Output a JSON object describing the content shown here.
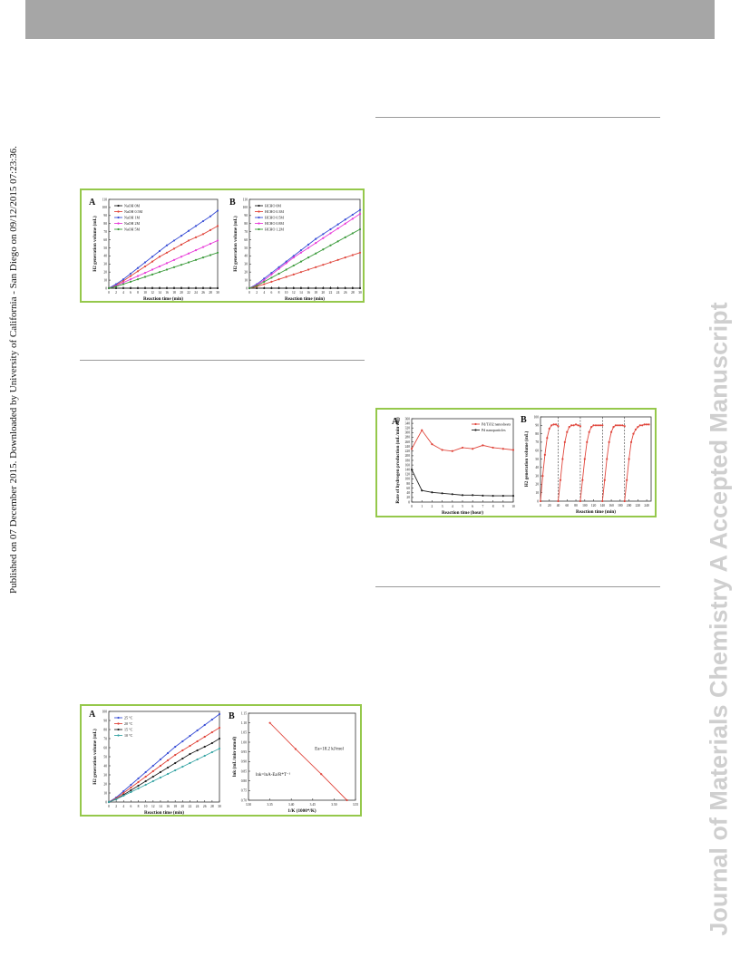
{
  "page": {
    "side_note_left": "Published on 07 December 2015. Downloaded by University of California - San Diego on 09/12/2015 07:23:36.",
    "watermark_right": "Journal of Materials Chemistry A Accepted Manuscript",
    "colors": {
      "figure_border": "#95c84b",
      "header": "#a6a6a6",
      "watermark": "#cfcfcf"
    }
  },
  "figures": [
    {
      "id": "fig1",
      "panels": [
        {
          "letter": "A",
          "chart_data": {
            "type": "line",
            "xlabel": "Reaction time (min)",
            "ylabel": "H2 generation volume (mL)",
            "xlim": [
              0,
              30
            ],
            "ylim": [
              0,
              110
            ],
            "xticks": [
              0,
              2,
              4,
              6,
              8,
              10,
              12,
              14,
              16,
              18,
              20,
              22,
              24,
              26,
              28,
              30
            ],
            "yticks": [
              0,
              10,
              20,
              30,
              40,
              50,
              60,
              70,
              80,
              90,
              100,
              110
            ],
            "legend": "top-left",
            "x": [
              0,
              2,
              4,
              6,
              8,
              10,
              12,
              14,
              16,
              18,
              20,
              22,
              24,
              26,
              28,
              30
            ],
            "series": [
              {
                "name": "NaOH 0M",
                "color": "#222222",
                "values": [
                  0,
                  0,
                  0,
                  0,
                  0,
                  0,
                  0,
                  0,
                  0,
                  0,
                  0,
                  0,
                  0,
                  0,
                  0,
                  0
                ]
              },
              {
                "name": "NaOH 0.5M",
                "color": "#e0463c",
                "values": [
                  0,
                  4,
                  9,
                  15,
                  21,
                  27,
                  33,
                  39,
                  44,
                  49,
                  54,
                  59,
                  63,
                  67,
                  72,
                  77
                ]
              },
              {
                "name": "NaOH 1M",
                "color": "#3a4fd6",
                "values": [
                  0,
                  5,
                  11,
                  18,
                  25,
                  32,
                  39,
                  46,
                  53,
                  59,
                  65,
                  71,
                  77,
                  83,
                  89,
                  96
                ]
              },
              {
                "name": "NaOH 2M",
                "color": "#e83ad8",
                "values": [
                  0,
                  3,
                  7,
                  11,
                  15,
                  19,
                  23,
                  27,
                  31,
                  35,
                  39,
                  43,
                  47,
                  51,
                  55,
                  59
                ]
              },
              {
                "name": "NaOH 5M",
                "color": "#3a9a3a",
                "values": [
                  0,
                  2,
                  5,
                  8,
                  11,
                  14,
                  17,
                  20,
                  23,
                  26,
                  29,
                  32,
                  35,
                  38,
                  41,
                  44
                ]
              }
            ]
          }
        },
        {
          "letter": "B",
          "chart_data": {
            "type": "line",
            "xlabel": "Reaction time (min)",
            "ylabel": "H2 generation volume (mL)",
            "xlim": [
              0,
              30
            ],
            "ylim": [
              0,
              110
            ],
            "xticks": [
              0,
              2,
              4,
              6,
              8,
              10,
              12,
              14,
              16,
              18,
              20,
              22,
              24,
              26,
              28,
              30
            ],
            "yticks": [
              0,
              10,
              20,
              30,
              40,
              50,
              60,
              70,
              80,
              90,
              100,
              110
            ],
            "legend": "top-left",
            "x": [
              0,
              2,
              4,
              6,
              8,
              10,
              12,
              14,
              16,
              18,
              20,
              22,
              24,
              26,
              28,
              30
            ],
            "series": [
              {
                "name": "HCHO 0M",
                "color": "#222222",
                "values": [
                  0,
                  0,
                  0,
                  0,
                  0,
                  0,
                  0,
                  0,
                  0,
                  0,
                  0,
                  0,
                  0,
                  0,
                  0,
                  0
                ]
              },
              {
                "name": "HCHO 0.3M",
                "color": "#e0463c",
                "values": [
                  0,
                  2,
                  5,
                  8,
                  11,
                  14,
                  17,
                  20,
                  23,
                  26,
                  29,
                  32,
                  35,
                  38,
                  41,
                  44
                ]
              },
              {
                "name": "HCHO 0.5M",
                "color": "#3a4fd6",
                "values": [
                  0,
                  5,
                  12,
                  19,
                  26,
                  33,
                  40,
                  47,
                  54,
                  61,
                  67,
                  73,
                  79,
                  85,
                  91,
                  97
                ]
              },
              {
                "name": "HCHO 0.8M",
                "color": "#e83ad8",
                "values": [
                  0,
                  4,
                  10,
                  17,
                  24,
                  31,
                  38,
                  44,
                  50,
                  56,
                  62,
                  68,
                  74,
                  80,
                  86,
                  92
                ]
              },
              {
                "name": "HCHO 1.2M",
                "color": "#3a9a3a",
                "values": [
                  0,
                  3,
                  8,
                  13,
                  18,
                  23,
                  28,
                  33,
                  38,
                  43,
                  48,
                  53,
                  58,
                  63,
                  68,
                  73
                ]
              }
            ]
          }
        }
      ]
    },
    {
      "id": "fig2",
      "panels": [
        {
          "letter": "A",
          "chart_data": {
            "type": "line",
            "xlabel": "Reaction time (hour)",
            "ylabel": "Rate of hydrogen production (mL/min·mg)",
            "xlim": [
              0,
              10
            ],
            "ylim": [
              0,
              360
            ],
            "xticks": [
              0,
              1,
              2,
              3,
              4,
              5,
              6,
              7,
              8,
              9,
              10
            ],
            "yticks": [
              0,
              20,
              40,
              60,
              80,
              100,
              120,
              140,
              160,
              180,
              200,
              220,
              240,
              260,
              280,
              300,
              320,
              340,
              360
            ],
            "legend": "top-right",
            "x": [
              0,
              1,
              2,
              3,
              4,
              5,
              6,
              7,
              8,
              9,
              10
            ],
            "series": [
              {
                "name": "Pd/TiO2 nanosheets",
                "color": "#e0463c",
                "values": [
                  230,
                  310,
                  250,
                  225,
                  220,
                  235,
                  230,
                  245,
                  235,
                  230,
                  225
                ]
              },
              {
                "name": "Pd nanoparticles",
                "color": "#222222",
                "values": [
                  140,
                  50,
                  42,
                  38,
                  34,
                  30,
                  30,
                  28,
                  27,
                  27,
                  27
                ]
              }
            ]
          }
        },
        {
          "letter": "B",
          "chart_data": {
            "type": "line",
            "xlabel": "Reaction time (min)",
            "ylabel": "H2 generation volume (mL)",
            "xlim": [
              0,
              250
            ],
            "ylim": [
              0,
              100
            ],
            "xticks": [
              0,
              20,
              40,
              60,
              80,
              100,
              120,
              140,
              160,
              180,
              200,
              220,
              240
            ],
            "yticks": [
              0,
              10,
              20,
              30,
              40,
              50,
              60,
              70,
              80,
              90,
              100
            ],
            "cycle_dividers": [
              40,
              90,
              140,
              190
            ],
            "cycles": [
              {
                "x": [
                  0,
                  5,
                  10,
                  15,
                  20,
                  25,
                  30,
                  35,
                  40
                ],
                "values": [
                  0,
                  30,
                  55,
                  75,
                  86,
                  90,
                  91,
                  91,
                  89
                ]
              },
              {
                "x": [
                  40,
                  45,
                  50,
                  55,
                  60,
                  65,
                  70,
                  75,
                  80,
                  85,
                  90
                ],
                "values": [
                  0,
                  25,
                  50,
                  70,
                  82,
                  88,
                  90,
                  90,
                  91,
                  90,
                  89
                ]
              },
              {
                "x": [
                  90,
                  95,
                  100,
                  105,
                  110,
                  115,
                  120,
                  125,
                  130,
                  135,
                  140
                ],
                "values": [
                  0,
                  25,
                  50,
                  70,
                  82,
                  88,
                  90,
                  90,
                  90,
                  90,
                  90
                ]
              },
              {
                "x": [
                  140,
                  145,
                  150,
                  155,
                  160,
                  165,
                  170,
                  175,
                  180,
                  185,
                  190
                ],
                "values": [
                  0,
                  25,
                  50,
                  70,
                  82,
                  88,
                  90,
                  90,
                  90,
                  90,
                  89
                ]
              },
              {
                "x": [
                  190,
                  195,
                  200,
                  205,
                  210,
                  215,
                  220,
                  225,
                  230,
                  235,
                  240,
                  245
                ],
                "values": [
                  0,
                  25,
                  50,
                  70,
                  80,
                  85,
                  88,
                  90,
                  90,
                  91,
                  91,
                  91
                ]
              }
            ],
            "color": "#e0463c"
          }
        }
      ]
    },
    {
      "id": "fig3",
      "panels": [
        {
          "letter": "A",
          "chart_data": {
            "type": "line",
            "xlabel": "Reaction time (min)",
            "ylabel": "H2 generation volume (mL)",
            "xlim": [
              0,
              30
            ],
            "ylim": [
              0,
              100
            ],
            "xticks": [
              0,
              2,
              4,
              6,
              8,
              10,
              12,
              14,
              16,
              18,
              20,
              22,
              24,
              26,
              28,
              30
            ],
            "yticks": [
              0,
              10,
              20,
              30,
              40,
              50,
              60,
              70,
              80,
              90,
              100
            ],
            "legend": "top-left",
            "x": [
              0,
              2,
              4,
              6,
              8,
              10,
              12,
              14,
              16,
              18,
              20,
              22,
              24,
              26,
              28,
              30
            ],
            "series": [
              {
                "name": "25 °C",
                "color": "#3a4fd6",
                "values": [
                  0,
                  5,
                  12,
                  19,
                  26,
                  33,
                  40,
                  47,
                  54,
                  61,
                  67,
                  73,
                  79,
                  85,
                  91,
                  97
                ]
              },
              {
                "name": "20 °C",
                "color": "#e0463c",
                "values": [
                  0,
                  4,
                  10,
                  16,
                  22,
                  28,
                  34,
                  40,
                  46,
                  52,
                  57,
                  62,
                  67,
                  72,
                  77,
                  82
                ]
              },
              {
                "name": "15 °C",
                "color": "#222222",
                "values": [
                  0,
                  3,
                  8,
                  13,
                  18,
                  23,
                  28,
                  33,
                  38,
                  43,
                  48,
                  53,
                  57,
                  61,
                  65,
                  70
                ]
              },
              {
                "name": "10 °C",
                "color": "#3aa6a6",
                "values": [
                  0,
                  3,
                  7,
                  11,
                  15,
                  19,
                  23,
                  27,
                  31,
                  35,
                  39,
                  43,
                  47,
                  51,
                  55,
                  59
                ]
              }
            ]
          }
        },
        {
          "letter": "B",
          "chart_data": {
            "type": "line",
            "xlabel": "1/K (1000*/K)",
            "ylabel": "lnk (mL/min·mmol)",
            "xlim": [
              3.3,
              3.55
            ],
            "ylim": [
              0.7,
              1.15
            ],
            "xticks": [
              3.3,
              3.35,
              3.4,
              3.45,
              3.5,
              3.55
            ],
            "yticks": [
              0.7,
              0.75,
              0.8,
              0.85,
              0.9,
              0.95,
              1.0,
              1.05,
              1.1,
              1.15
            ],
            "annotations": [
              "Ea=18.2 kJ/mol",
              "lnk=lnA-Ea/R*T⁻¹"
            ],
            "x": [
              3.35,
              3.41,
              3.47,
              3.53
            ],
            "series": [
              {
                "name": "",
                "color": "#e0463c",
                "values": [
                  1.1,
                  0.965,
                  0.835,
                  0.7
                ]
              }
            ]
          }
        }
      ]
    }
  ]
}
